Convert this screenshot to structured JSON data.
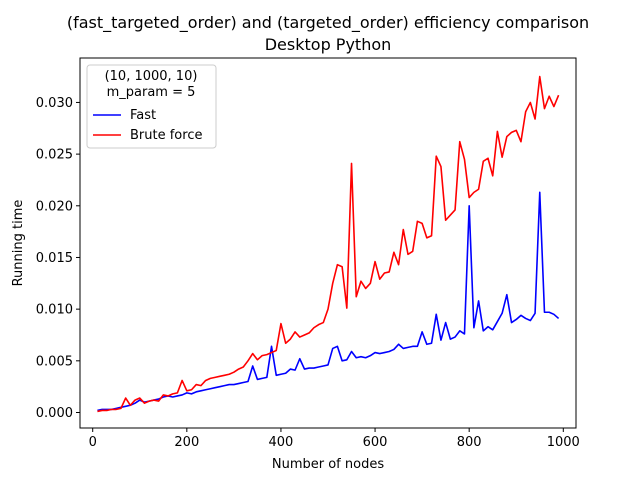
{
  "chart_data": {
    "type": "line",
    "title": "(fast_targeted_order) and (targeted_order) efficiency comparison",
    "subtitle": "Desktop Python",
    "xlabel": "Number of nodes",
    "ylabel": "Running time",
    "xlim": [
      -27,
      1027
    ],
    "ylim": [
      -0.0015,
      0.0343
    ],
    "xticks": [
      0,
      200,
      400,
      600,
      800,
      1000
    ],
    "xtick_labels": [
      "0",
      "200",
      "400",
      "600",
      "800",
      "1000"
    ],
    "yticks": [
      0.0,
      0.005,
      0.01,
      0.015,
      0.02,
      0.025,
      0.03
    ],
    "ytick_labels": [
      "0.000",
      "0.005",
      "0.010",
      "0.015",
      "0.020",
      "0.025",
      "0.030"
    ],
    "grid": false,
    "legend": {
      "placement": "top-left",
      "title_lines": [
        "(10, 1000, 10)",
        "m_param = 5"
      ]
    },
    "x": [
      10,
      20,
      30,
      40,
      50,
      60,
      70,
      80,
      90,
      100,
      110,
      120,
      130,
      140,
      150,
      160,
      170,
      180,
      190,
      200,
      210,
      220,
      230,
      240,
      250,
      260,
      270,
      280,
      290,
      300,
      310,
      320,
      330,
      340,
      350,
      360,
      370,
      380,
      390,
      400,
      410,
      420,
      430,
      440,
      450,
      460,
      470,
      480,
      490,
      500,
      510,
      520,
      530,
      540,
      550,
      560,
      570,
      580,
      590,
      600,
      610,
      620,
      630,
      640,
      650,
      660,
      670,
      680,
      690,
      700,
      710,
      720,
      730,
      740,
      750,
      760,
      770,
      780,
      790,
      800,
      810,
      820,
      830,
      840,
      850,
      860,
      870,
      880,
      890,
      900,
      910,
      920,
      930,
      940,
      950,
      960,
      970,
      980,
      990
    ],
    "series": [
      {
        "name": "Fast",
        "color": "#0000ff",
        "values": [
          0.0002,
          0.0003,
          0.0003,
          0.0003,
          0.0004,
          0.0005,
          0.0006,
          0.0007,
          0.0009,
          0.0012,
          0.001,
          0.0011,
          0.0012,
          0.0013,
          0.0015,
          0.0016,
          0.0015,
          0.0016,
          0.0017,
          0.0019,
          0.0018,
          0.002,
          0.0021,
          0.0022,
          0.0023,
          0.0024,
          0.0025,
          0.0026,
          0.0027,
          0.0027,
          0.0028,
          0.0029,
          0.003,
          0.0045,
          0.0032,
          0.0033,
          0.0034,
          0.0064,
          0.0036,
          0.0037,
          0.0038,
          0.0042,
          0.0041,
          0.0052,
          0.0042,
          0.0043,
          0.0043,
          0.0044,
          0.0045,
          0.0046,
          0.0062,
          0.0064,
          0.005,
          0.0051,
          0.0059,
          0.0053,
          0.0054,
          0.0053,
          0.0055,
          0.0058,
          0.0057,
          0.0058,
          0.0059,
          0.0061,
          0.0066,
          0.0062,
          0.0063,
          0.0064,
          0.0064,
          0.0078,
          0.0066,
          0.0067,
          0.0095,
          0.007,
          0.0087,
          0.0071,
          0.0073,
          0.0079,
          0.0076,
          0.02,
          0.0082,
          0.0108,
          0.0079,
          0.0083,
          0.008,
          0.0088,
          0.0096,
          0.0114,
          0.0087,
          0.009,
          0.0094,
          0.0091,
          0.0089,
          0.0096,
          0.0213,
          0.0097,
          0.0097,
          0.0095,
          0.0091
        ]
      },
      {
        "name": "Brute force",
        "color": "#ff0000",
        "values": [
          0.0001,
          0.0002,
          0.0002,
          0.0003,
          0.0003,
          0.0004,
          0.0014,
          0.0007,
          0.0012,
          0.0014,
          0.0009,
          0.0011,
          0.0012,
          0.0011,
          0.0017,
          0.0016,
          0.0018,
          0.0019,
          0.0031,
          0.0021,
          0.0022,
          0.0027,
          0.0026,
          0.0031,
          0.0033,
          0.0034,
          0.0035,
          0.0036,
          0.0037,
          0.0039,
          0.0042,
          0.0044,
          0.005,
          0.0057,
          0.0051,
          0.0055,
          0.0056,
          0.0058,
          0.006,
          0.0086,
          0.0067,
          0.0071,
          0.0078,
          0.0073,
          0.0075,
          0.0077,
          0.0082,
          0.0085,
          0.0087,
          0.01,
          0.0125,
          0.0143,
          0.0141,
          0.0101,
          0.0241,
          0.0112,
          0.0127,
          0.012,
          0.0125,
          0.0146,
          0.0129,
          0.0135,
          0.0136,
          0.0155,
          0.0143,
          0.0177,
          0.0153,
          0.0156,
          0.0185,
          0.0183,
          0.0169,
          0.0171,
          0.0248,
          0.0238,
          0.0186,
          0.0191,
          0.0196,
          0.0262,
          0.0245,
          0.0208,
          0.0213,
          0.0216,
          0.0243,
          0.0246,
          0.0229,
          0.0272,
          0.0247,
          0.0267,
          0.0271,
          0.0273,
          0.0262,
          0.0291,
          0.03,
          0.0284,
          0.0325,
          0.0294,
          0.0306,
          0.0296,
          0.0307
        ]
      }
    ]
  }
}
